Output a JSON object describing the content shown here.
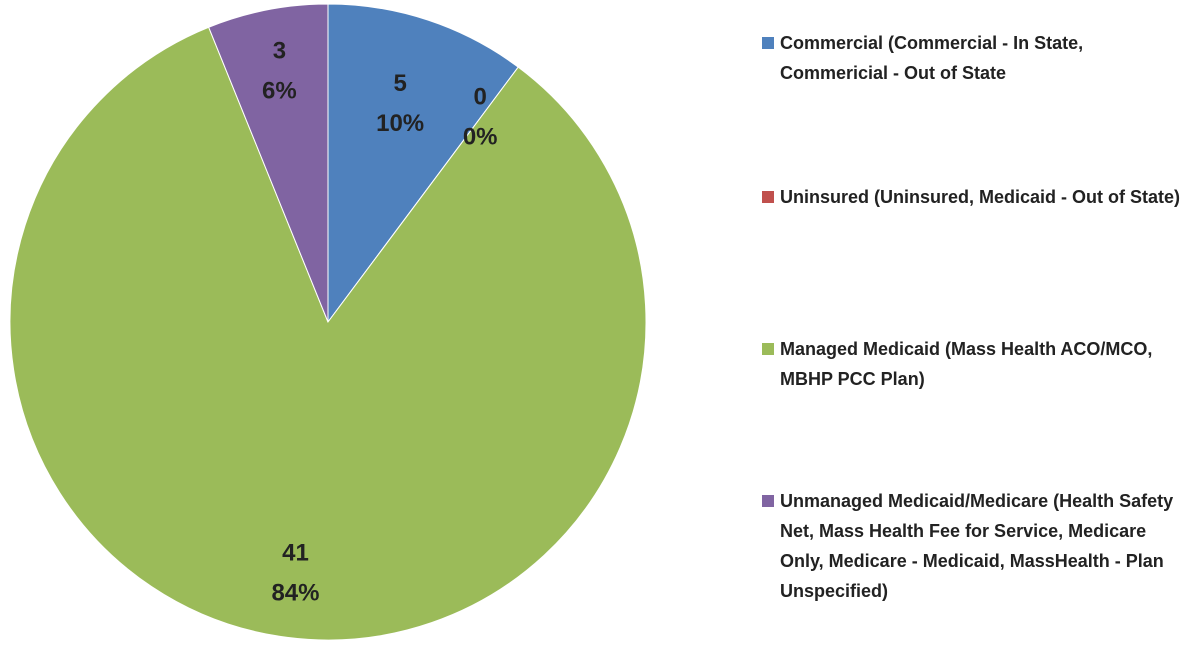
{
  "chart_data": {
    "type": "pie",
    "categories": [
      "Commercial (Commercial - In State, Commericial - Out of State",
      "Uninsured (Uninsured, Medicaid - Out of State)",
      "Managed Medicaid (Mass Health ACO/MCO, MBHP PCC Plan)",
      "Unmanaged Medicaid/Medicare (Health Safety Net, Mass Health Fee for Service, Medicare Only, Medicare - Medicaid, MassHealth - Plan Unspecified)"
    ],
    "values": [
      5,
      0,
      41,
      3
    ],
    "percent_labels": [
      "10%",
      "0%",
      "84%",
      "6%"
    ],
    "colors": [
      "#4f81bd",
      "#c0504d",
      "#9bbb59",
      "#8064a2"
    ],
    "legend": "right"
  }
}
